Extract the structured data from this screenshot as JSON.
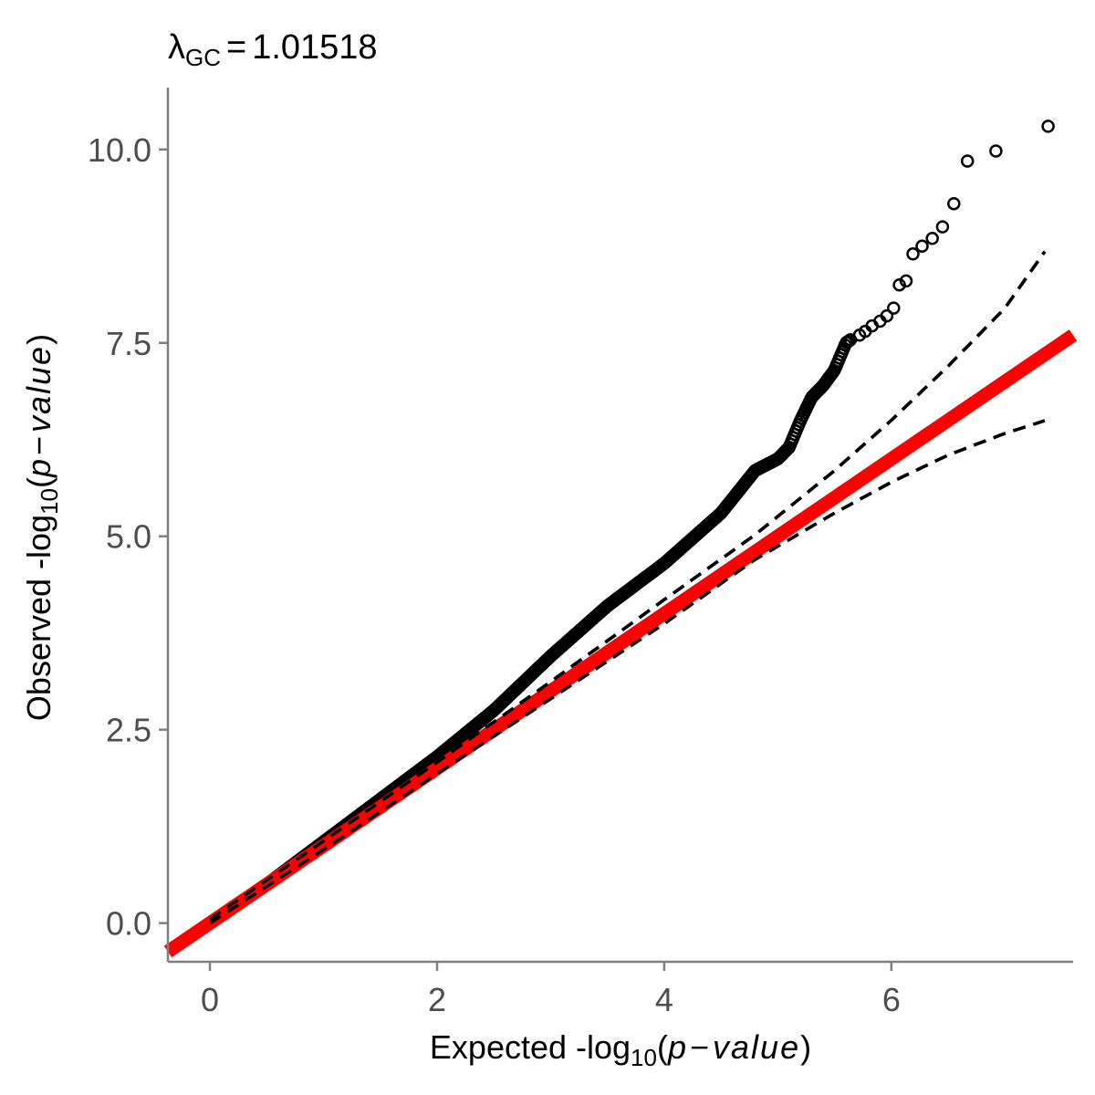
{
  "chart_data": {
    "type": "scatter",
    "title": {
      "symbol": "λ",
      "subscript": "GC",
      "equals": "=",
      "value": "1.01518"
    },
    "xlabel": {
      "prefix": "Expected -log",
      "subscript": "10",
      "open": "(",
      "p": "p",
      "minus": "−",
      "value_word": "value",
      "close": ")"
    },
    "ylabel": {
      "prefix": "Observed -log",
      "subscript": "10",
      "open": "(",
      "p": "p",
      "minus": "−",
      "value_word": "value",
      "close": ")"
    },
    "xlim": [
      -0.37,
      7.6
    ],
    "ylim": [
      -0.5,
      10.8
    ],
    "x_ticks": [
      0,
      2,
      4,
      6
    ],
    "x_tick_labels": [
      "0",
      "2",
      "4",
      "6"
    ],
    "y_ticks": [
      0,
      2.5,
      5,
      7.5,
      10
    ],
    "y_tick_labels": [
      "0.0",
      "2.5",
      "5.0",
      "7.5",
      "10.0"
    ],
    "grid": false,
    "legend": "none",
    "colors": {
      "points": "#000000",
      "reference_line": "#ff0000",
      "confidence_band": "#000000",
      "axis": "#7f7f7f",
      "tick_text": "#4d4d4d"
    },
    "reference_line": {
      "name": "",
      "x": [
        -0.37,
        7.6
      ],
      "y": [
        -0.37,
        7.6
      ]
    },
    "confidence_band_upper": {
      "x": [
        0,
        1,
        2,
        3,
        4,
        4.8,
        5.5,
        6,
        6.5,
        7,
        7.36
      ],
      "y": [
        0.05,
        1.06,
        2.08,
        3.12,
        4.18,
        5.02,
        5.85,
        6.5,
        7.2,
        7.95,
        8.7
      ]
    },
    "confidence_band_lower": {
      "x": [
        0,
        1,
        2,
        3,
        4,
        4.8,
        5.5,
        6,
        6.5,
        7,
        7.36
      ],
      "y": [
        0.0,
        0.95,
        1.93,
        2.9,
        3.87,
        4.7,
        5.3,
        5.7,
        6.05,
        6.33,
        6.5
      ]
    },
    "observed_curve": {
      "description_free": true,
      "x": [
        0,
        0.5,
        1,
        1.5,
        2,
        2.5,
        3,
        3.5,
        4,
        4.5,
        4.8,
        5.0,
        5.1,
        5.2,
        5.3,
        5.4,
        5.5,
        5.6,
        5.65
      ],
      "y": [
        0,
        0.5,
        1.05,
        1.6,
        2.15,
        2.75,
        3.45,
        4.1,
        4.65,
        5.3,
        5.85,
        6.0,
        6.15,
        6.5,
        6.8,
        6.95,
        7.15,
        7.5,
        7.55
      ]
    },
    "top_points": {
      "x": [
        5.72,
        5.77,
        5.83,
        5.9,
        5.96,
        6.02,
        6.07,
        6.13,
        6.19,
        6.27,
        6.36,
        6.45,
        6.55,
        6.67,
        6.92,
        7.38
      ],
      "y": [
        7.6,
        7.65,
        7.72,
        7.78,
        7.85,
        7.95,
        8.25,
        8.3,
        8.65,
        8.75,
        8.85,
        9.0,
        9.3,
        9.85,
        9.98,
        10.3
      ]
    }
  }
}
